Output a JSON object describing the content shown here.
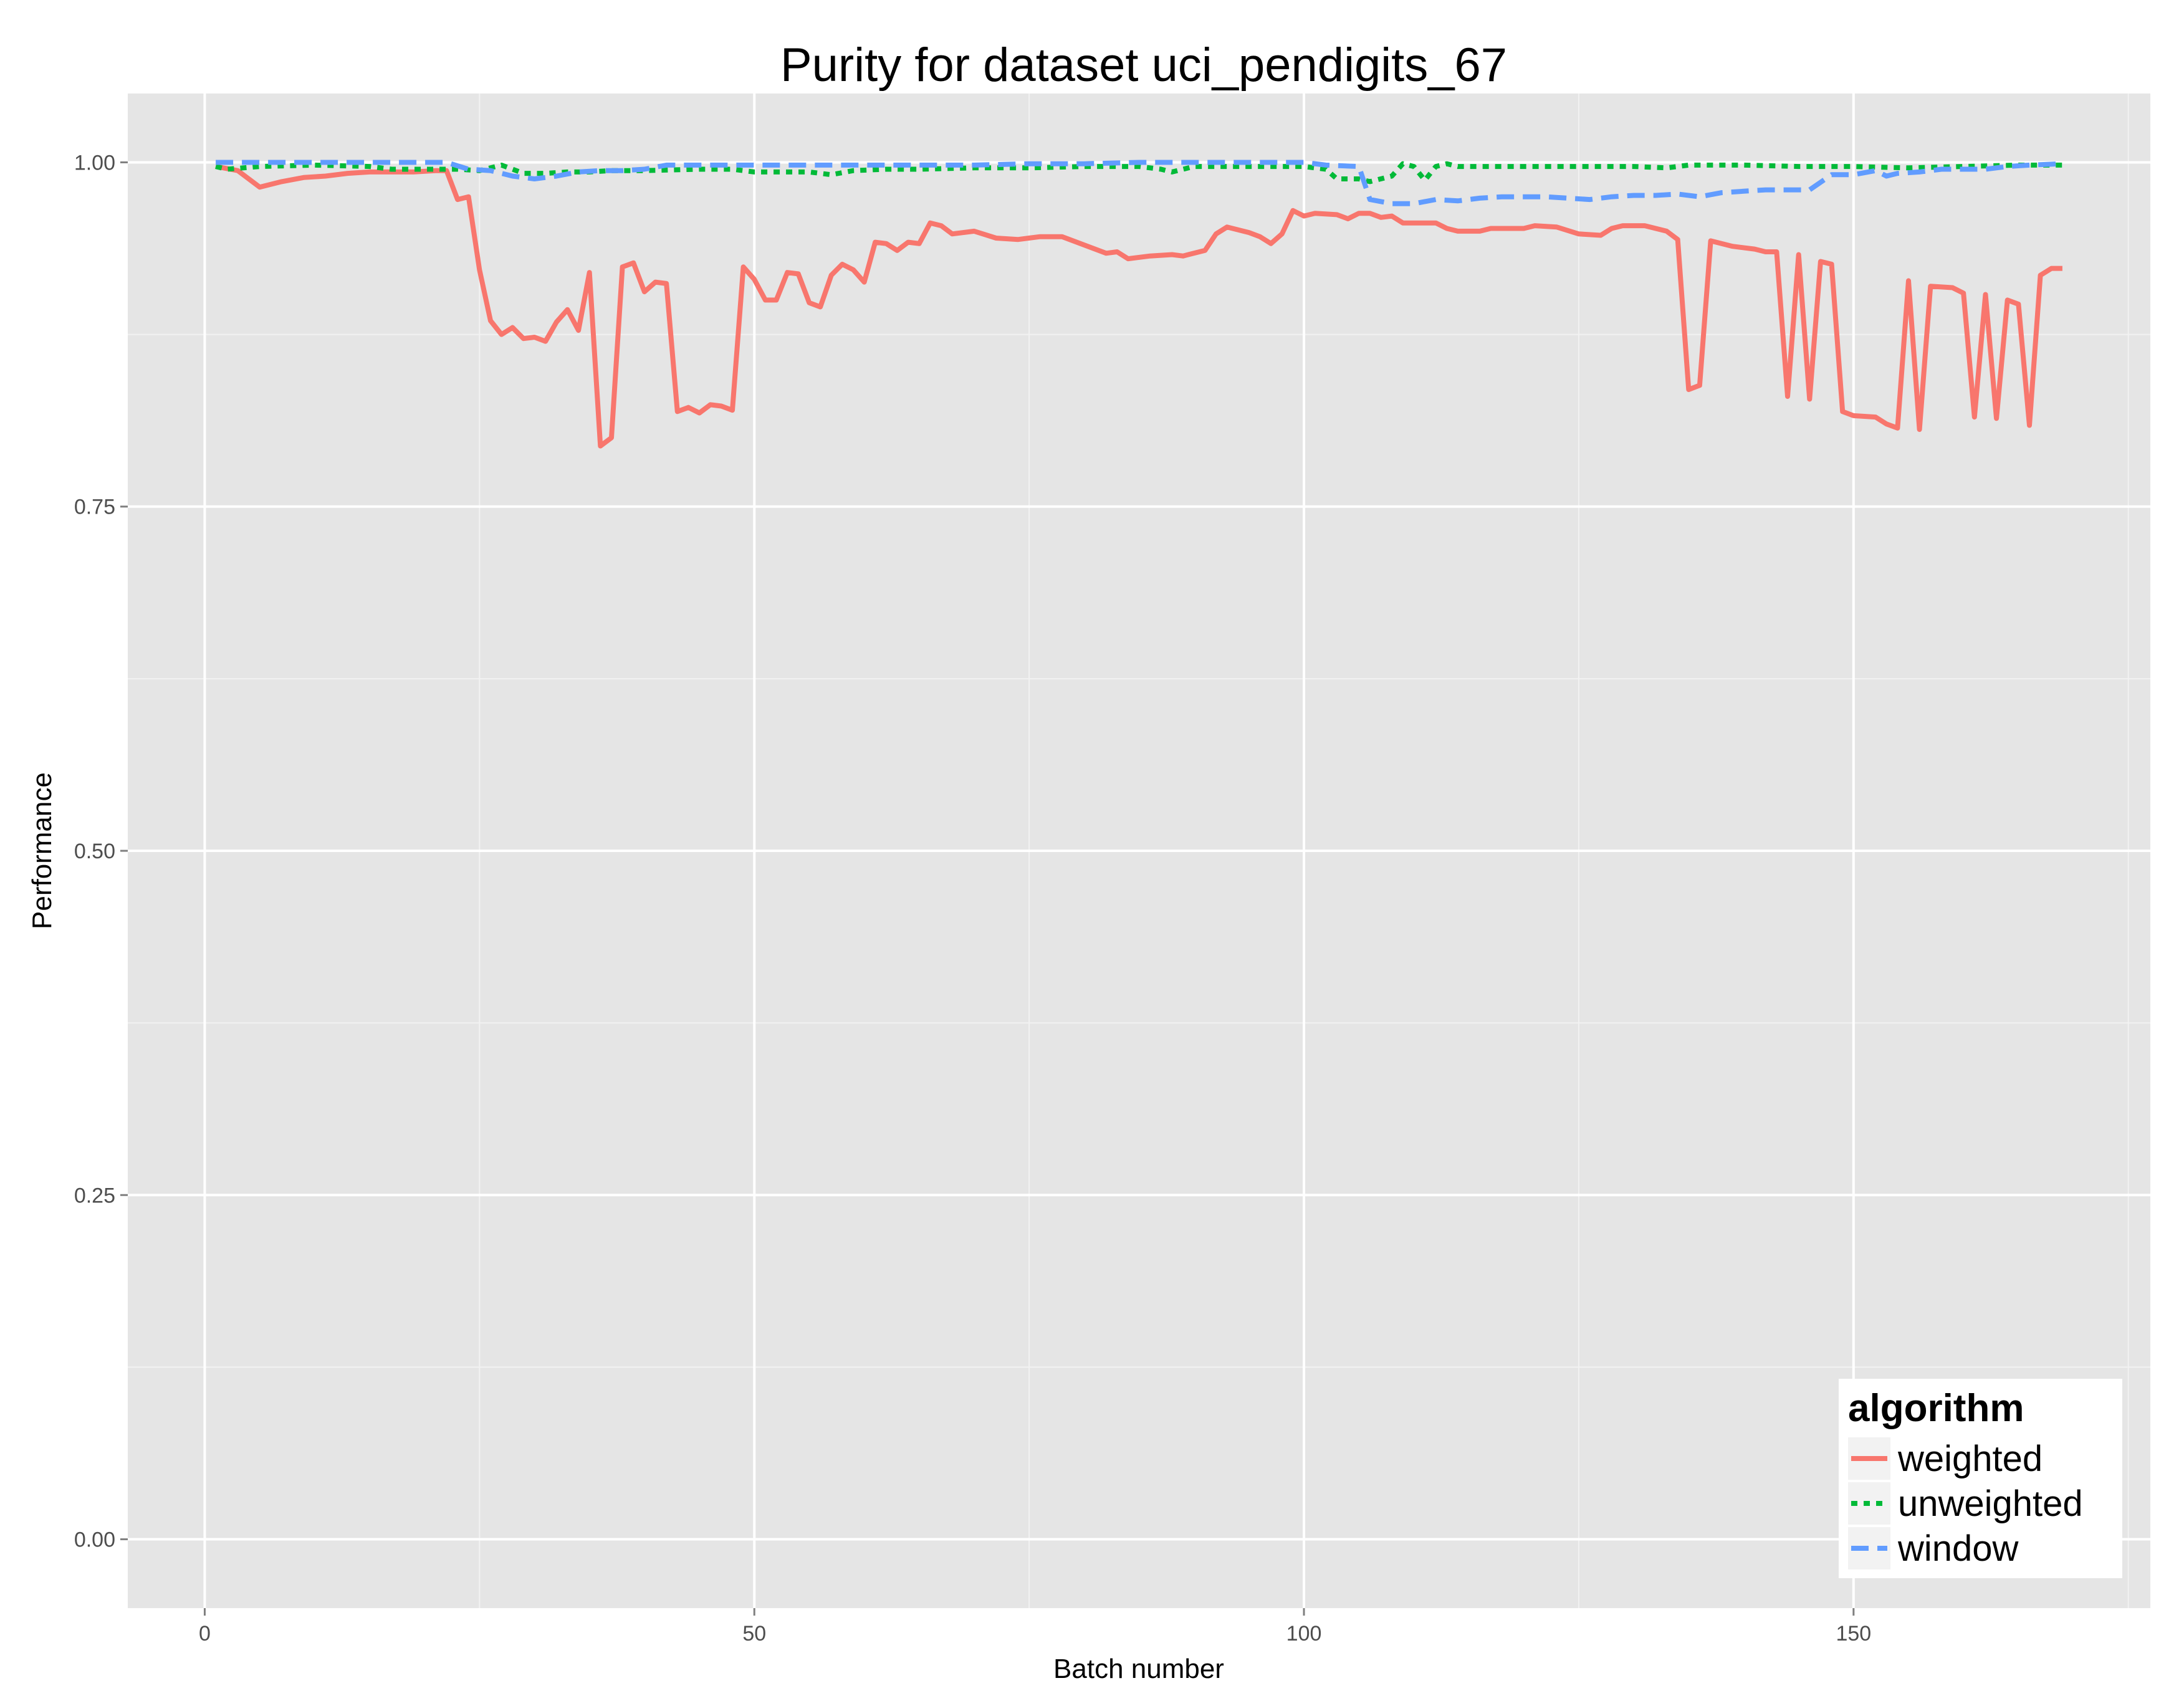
{
  "chart_data": {
    "type": "line",
    "title": "Purity for dataset uci_pendigits_67",
    "xlabel": "Batch number",
    "ylabel": "Performance",
    "xlim": [
      -7,
      177
    ],
    "ylim": [
      -0.05,
      1.05
    ],
    "x_ticks": [
      0,
      50,
      100,
      150
    ],
    "x_tick_labels": [
      "0",
      "50",
      "100",
      "150"
    ],
    "y_ticks": [
      0,
      0.25,
      0.5,
      0.75,
      1.0
    ],
    "y_tick_labels": [
      "0.00",
      "0.25",
      "0.50",
      "0.75",
      "1.00"
    ],
    "grid": true,
    "legend": {
      "title": "algorithm",
      "position": "bottom-right"
    },
    "series": [
      {
        "name": "weighted",
        "color": "#F8766D",
        "dash": "solid",
        "points": [
          [
            1,
            0.997
          ],
          [
            3,
            0.994
          ],
          [
            5,
            0.982
          ],
          [
            7,
            0.986
          ],
          [
            9,
            0.989
          ],
          [
            11,
            0.99
          ],
          [
            13,
            0.992
          ],
          [
            15,
            0.993
          ],
          [
            17,
            0.993
          ],
          [
            19,
            0.993
          ],
          [
            21,
            0.994
          ],
          [
            22,
            0.994
          ],
          [
            23,
            0.973
          ],
          [
            24,
            0.975
          ],
          [
            25,
            0.922
          ],
          [
            26,
            0.885
          ],
          [
            27,
            0.875
          ],
          [
            28,
            0.88
          ],
          [
            29,
            0.872
          ],
          [
            30,
            0.873
          ],
          [
            31,
            0.87
          ],
          [
            32,
            0.884
          ],
          [
            33,
            0.893
          ],
          [
            34,
            0.878
          ],
          [
            35,
            0.92
          ],
          [
            36,
            0.794
          ],
          [
            37,
            0.8
          ],
          [
            38,
            0.924
          ],
          [
            39,
            0.927
          ],
          [
            40,
            0.906
          ],
          [
            41,
            0.913
          ],
          [
            42,
            0.912
          ],
          [
            43,
            0.819
          ],
          [
            44,
            0.822
          ],
          [
            45,
            0.818
          ],
          [
            46,
            0.824
          ],
          [
            47,
            0.823
          ],
          [
            48,
            0.82
          ],
          [
            49,
            0.924
          ],
          [
            50,
            0.915
          ],
          [
            51,
            0.9
          ],
          [
            52,
            0.9
          ],
          [
            53,
            0.92
          ],
          [
            54,
            0.919
          ],
          [
            55,
            0.898
          ],
          [
            56,
            0.895
          ],
          [
            57,
            0.918
          ],
          [
            58,
            0.926
          ],
          [
            59,
            0.922
          ],
          [
            60,
            0.913
          ],
          [
            61,
            0.942
          ],
          [
            62,
            0.941
          ],
          [
            63,
            0.936
          ],
          [
            64,
            0.942
          ],
          [
            65,
            0.941
          ],
          [
            66,
            0.956
          ],
          [
            67,
            0.954
          ],
          [
            68,
            0.948
          ],
          [
            70,
            0.95
          ],
          [
            72,
            0.945
          ],
          [
            74,
            0.944
          ],
          [
            76,
            0.946
          ],
          [
            78,
            0.946
          ],
          [
            80,
            0.94
          ],
          [
            82,
            0.934
          ],
          [
            83,
            0.935
          ],
          [
            84,
            0.93
          ],
          [
            86,
            0.932
          ],
          [
            88,
            0.933
          ],
          [
            89,
            0.932
          ],
          [
            91,
            0.936
          ],
          [
            92,
            0.948
          ],
          [
            93,
            0.953
          ],
          [
            95,
            0.949
          ],
          [
            96,
            0.946
          ],
          [
            97,
            0.941
          ],
          [
            98,
            0.948
          ],
          [
            99,
            0.965
          ],
          [
            100,
            0.961
          ],
          [
            101,
            0.963
          ],
          [
            103,
            0.962
          ],
          [
            104,
            0.959
          ],
          [
            105,
            0.963
          ],
          [
            106,
            0.963
          ],
          [
            107,
            0.96
          ],
          [
            108,
            0.961
          ],
          [
            109,
            0.956
          ],
          [
            112,
            0.956
          ],
          [
            113,
            0.952
          ],
          [
            114,
            0.95
          ],
          [
            116,
            0.95
          ],
          [
            117,
            0.952
          ],
          [
            120,
            0.952
          ],
          [
            121,
            0.954
          ],
          [
            123,
            0.953
          ],
          [
            125,
            0.948
          ],
          [
            127,
            0.947
          ],
          [
            128,
            0.952
          ],
          [
            129,
            0.954
          ],
          [
            131,
            0.954
          ],
          [
            133,
            0.95
          ],
          [
            134,
            0.944
          ],
          [
            135,
            0.835
          ],
          [
            136,
            0.838
          ],
          [
            137,
            0.943
          ],
          [
            139,
            0.939
          ],
          [
            141,
            0.937
          ],
          [
            142,
            0.935
          ],
          [
            143,
            0.935
          ],
          [
            144,
            0.83
          ],
          [
            145,
            0.933
          ],
          [
            146,
            0.828
          ],
          [
            147,
            0.928
          ],
          [
            148,
            0.926
          ],
          [
            149,
            0.819
          ],
          [
            150,
            0.816
          ],
          [
            152,
            0.815
          ],
          [
            153,
            0.81
          ],
          [
            154,
            0.807
          ],
          [
            155,
            0.914
          ],
          [
            156,
            0.806
          ],
          [
            157,
            0.91
          ],
          [
            159,
            0.909
          ],
          [
            160,
            0.905
          ],
          [
            161,
            0.815
          ],
          [
            162,
            0.904
          ],
          [
            163,
            0.814
          ],
          [
            164,
            0.9
          ],
          [
            165,
            0.897
          ],
          [
            166,
            0.809
          ],
          [
            167,
            0.918
          ],
          [
            168,
            0.923
          ],
          [
            169,
            0.923
          ]
        ]
      },
      {
        "name": "unweighted",
        "color": "#00BA38",
        "dash": "dotted",
        "points": [
          [
            1,
            0.997
          ],
          [
            2,
            0.995
          ],
          [
            5,
            0.997
          ],
          [
            10,
            0.998
          ],
          [
            15,
            0.997
          ],
          [
            17,
            0.995
          ],
          [
            20,
            0.995
          ],
          [
            23,
            0.995
          ],
          [
            25,
            0.994
          ],
          [
            27,
            0.998
          ],
          [
            29,
            0.992
          ],
          [
            31,
            0.992
          ],
          [
            33,
            0.993
          ],
          [
            35,
            0.993
          ],
          [
            37,
            0.994
          ],
          [
            40,
            0.994
          ],
          [
            45,
            0.995
          ],
          [
            48,
            0.995
          ],
          [
            50,
            0.993
          ],
          [
            52,
            0.993
          ],
          [
            55,
            0.993
          ],
          [
            57,
            0.991
          ],
          [
            59,
            0.994
          ],
          [
            62,
            0.995
          ],
          [
            65,
            0.995
          ],
          [
            70,
            0.996
          ],
          [
            75,
            0.996
          ],
          [
            80,
            0.997
          ],
          [
            85,
            0.997
          ],
          [
            87,
            0.995
          ],
          [
            88,
            0.993
          ],
          [
            90,
            0.997
          ],
          [
            95,
            0.997
          ],
          [
            100,
            0.997
          ],
          [
            102,
            0.995
          ],
          [
            103,
            0.988
          ],
          [
            105,
            0.988
          ],
          [
            106,
            0.986
          ],
          [
            108,
            0.99
          ],
          [
            109,
            0.999
          ],
          [
            110,
            0.997
          ],
          [
            111,
            0.987
          ],
          [
            112,
            0.997
          ],
          [
            113,
            0.999
          ],
          [
            114,
            0.997
          ],
          [
            120,
            0.997
          ],
          [
            125,
            0.997
          ],
          [
            130,
            0.997
          ],
          [
            133,
            0.996
          ],
          [
            135,
            0.998
          ],
          [
            140,
            0.998
          ],
          [
            145,
            0.997
          ],
          [
            150,
            0.997
          ],
          [
            155,
            0.996
          ],
          [
            160,
            0.997
          ],
          [
            165,
            0.998
          ],
          [
            169,
            0.998
          ]
        ]
      },
      {
        "name": "window",
        "color": "#619CFF",
        "dash": "dashed",
        "points": [
          [
            1,
            1.0
          ],
          [
            5,
            1.0
          ],
          [
            10,
            1.0
          ],
          [
            15,
            1.0
          ],
          [
            20,
            1.0
          ],
          [
            22,
            1.0
          ],
          [
            24,
            0.995
          ],
          [
            26,
            0.994
          ],
          [
            28,
            0.99
          ],
          [
            30,
            0.988
          ],
          [
            32,
            0.99
          ],
          [
            34,
            0.993
          ],
          [
            36,
            0.994
          ],
          [
            38,
            0.994
          ],
          [
            40,
            0.995
          ],
          [
            42,
            0.998
          ],
          [
            45,
            0.998
          ],
          [
            50,
            0.998
          ],
          [
            55,
            0.998
          ],
          [
            60,
            0.998
          ],
          [
            65,
            0.998
          ],
          [
            70,
            0.998
          ],
          [
            75,
            0.999
          ],
          [
            80,
            0.999
          ],
          [
            85,
            1.0
          ],
          [
            90,
            1.0
          ],
          [
            95,
            1.0
          ],
          [
            100,
            1.0
          ],
          [
            102,
            0.998
          ],
          [
            105,
            0.997
          ],
          [
            106,
            0.973
          ],
          [
            108,
            0.97
          ],
          [
            110,
            0.97
          ],
          [
            112,
            0.973
          ],
          [
            114,
            0.972
          ],
          [
            116,
            0.974
          ],
          [
            118,
            0.975
          ],
          [
            122,
            0.975
          ],
          [
            124,
            0.974
          ],
          [
            126,
            0.973
          ],
          [
            128,
            0.975
          ],
          [
            130,
            0.976
          ],
          [
            132,
            0.976
          ],
          [
            134,
            0.977
          ],
          [
            136,
            0.975
          ],
          [
            138,
            0.978
          ],
          [
            140,
            0.979
          ],
          [
            142,
            0.98
          ],
          [
            146,
            0.98
          ],
          [
            148,
            0.991
          ],
          [
            150,
            0.991
          ],
          [
            152,
            0.994
          ],
          [
            153,
            0.99
          ],
          [
            154,
            0.992
          ],
          [
            156,
            0.993
          ],
          [
            158,
            0.995
          ],
          [
            160,
            0.995
          ],
          [
            162,
            0.995
          ],
          [
            164,
            0.997
          ],
          [
            166,
            0.998
          ],
          [
            169,
            0.999
          ]
        ]
      }
    ]
  }
}
